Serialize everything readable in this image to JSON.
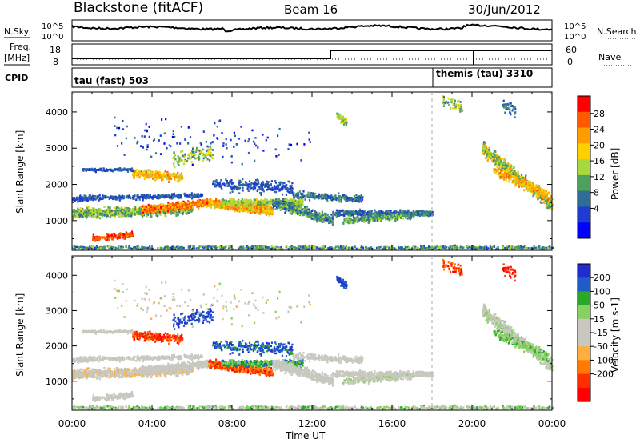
{
  "header": {
    "title": "Blackstone (fitACF)",
    "beam": "Beam 16",
    "date": "30/Jun/2012"
  },
  "labels": {
    "nsky": "N.Sky",
    "freq": "Freq.",
    "mhz": "[MHz]",
    "cpid": "CPID",
    "nsearch": "N.Search",
    "nave": "Nave",
    "nsky_top": "10^5",
    "nsky_bot": "10^0",
    "freq_top": "18",
    "freq_bot": "8",
    "nave_top": "60",
    "nave_bot": "0",
    "cpid_a": "tau (fast) 503",
    "cpid_b": "themis (tau) 3310"
  },
  "chart_data": [
    {
      "type": "heatmap",
      "name": "power",
      "xlabel": "Time UT",
      "ylabel": "Slant Range [km]",
      "x_ticks": [
        "00:00",
        "04:00",
        "08:00",
        "12:00",
        "16:00",
        "20:00",
        "00:00"
      ],
      "y_ticks": [
        "1000",
        "2000",
        "3000",
        "4000"
      ],
      "ylim": [
        180,
        4550
      ],
      "colorbar": {
        "label": "Power [dB]",
        "ticks": [
          "28",
          "24",
          "20",
          "16",
          "12",
          "8",
          "4"
        ],
        "colors": [
          "#ff0000",
          "#ff5a00",
          "#ff9c00",
          "#ffd000",
          "#a8d83c",
          "#4ea05c",
          "#2e6d96",
          "#1e3cd0",
          "#0000ff"
        ]
      }
    },
    {
      "type": "heatmap",
      "name": "velocity",
      "xlabel": "Time UT",
      "ylabel": "Slant Range [km]",
      "x_ticks": [
        "00:00",
        "04:00",
        "08:00",
        "12:00",
        "16:00",
        "20:00",
        "00:00"
      ],
      "y_ticks": [
        "1000",
        "2000",
        "3000",
        "4000"
      ],
      "ylim": [
        180,
        4550
      ],
      "colorbar": {
        "label": "Velocity [m s-1]",
        "ticks": [
          "200",
          "100",
          "50",
          "15",
          "-15",
          "-50",
          "-100",
          "-200"
        ],
        "colors": [
          "#1e2cd0",
          "#1f5cc8",
          "#2aa82a",
          "#88d060",
          "#c8c8c0",
          "#c8c8c0",
          "#ffb03c",
          "#ff7a00",
          "#ff3000",
          "#ff0000"
        ]
      }
    }
  ]
}
